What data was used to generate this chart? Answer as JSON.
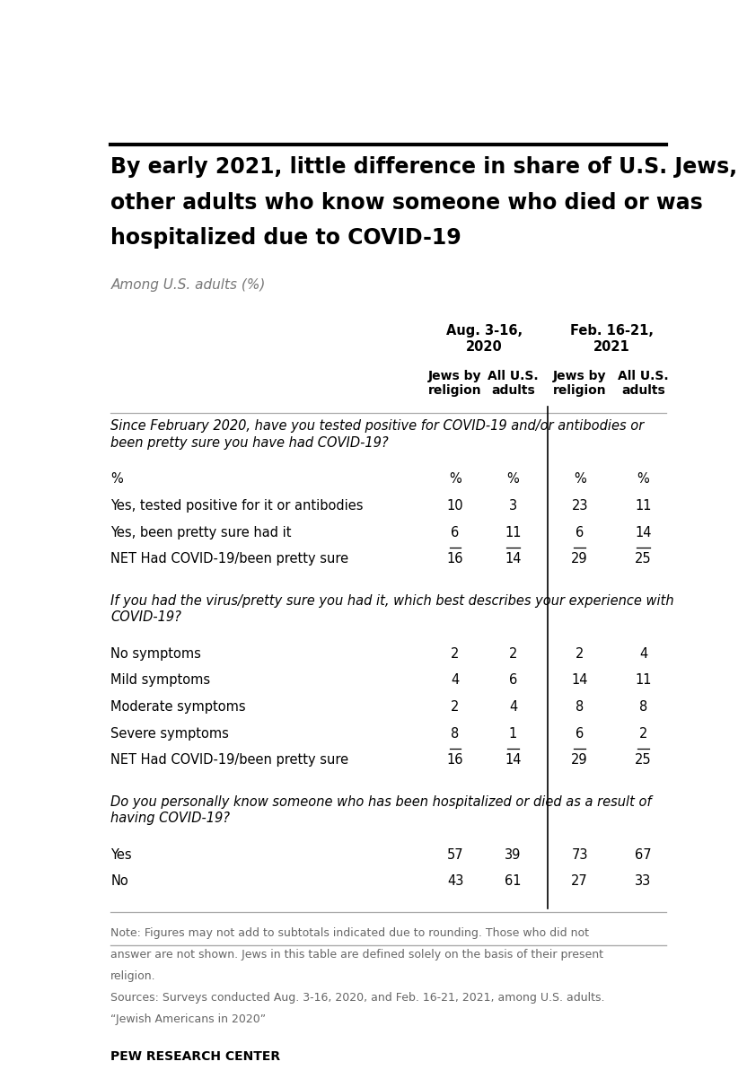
{
  "title_line1": "By early 2021, little difference in share of U.S. Jews,",
  "title_line2": "other adults who know someone who died or was",
  "title_line3": "hospitalized due to COVID-19",
  "subtitle": "Among U.S. adults (%)",
  "date_headers": [
    "Aug. 3-16,\n2020",
    "Feb. 16-21,\n2021"
  ],
  "sub_col_headers": [
    "Jews by\nreligion",
    "All U.S.\nadults",
    "Jews by\nreligion",
    "All U.S.\nadults"
  ],
  "sections": [
    {
      "question": "Since February 2020, have you tested positive for COVID-19 and/or antibodies or\nbeen pretty sure you have had COVID-19?",
      "rows": [
        {
          "label": "%",
          "values": [
            "%",
            "%",
            "%",
            "%"
          ],
          "underline": [
            false,
            false,
            false,
            false
          ]
        },
        {
          "label": "Yes, tested positive for it or antibodies",
          "values": [
            "10",
            "3",
            "23",
            "11"
          ],
          "underline": [
            false,
            false,
            false,
            false
          ]
        },
        {
          "label": "Yes, been pretty sure had it",
          "values": [
            "6",
            "11",
            "6",
            "14"
          ],
          "underline": [
            true,
            true,
            true,
            true
          ]
        },
        {
          "label": "NET Had COVID-19/been pretty sure",
          "values": [
            "16",
            "14",
            "29",
            "25"
          ],
          "underline": [
            false,
            false,
            false,
            false
          ]
        }
      ]
    },
    {
      "question": "If you had the virus/pretty sure you had it, which best describes your experience with\nCOVID-19?",
      "rows": [
        {
          "label": "No symptoms",
          "values": [
            "2",
            "2",
            "2",
            "4"
          ],
          "underline": [
            false,
            false,
            false,
            false
          ]
        },
        {
          "label": "Mild symptoms",
          "values": [
            "4",
            "6",
            "14",
            "11"
          ],
          "underline": [
            false,
            false,
            false,
            false
          ]
        },
        {
          "label": "Moderate symptoms",
          "values": [
            "2",
            "4",
            "8",
            "8"
          ],
          "underline": [
            false,
            false,
            false,
            false
          ]
        },
        {
          "label": "Severe symptoms",
          "values": [
            "8",
            "1",
            "6",
            "2"
          ],
          "underline": [
            true,
            true,
            true,
            true
          ]
        },
        {
          "label": "NET Had COVID-19/been pretty sure",
          "values": [
            "16",
            "14",
            "29",
            "25"
          ],
          "underline": [
            false,
            false,
            false,
            false
          ]
        }
      ]
    },
    {
      "question": "Do you personally know someone who has been hospitalized or died as a result of\nhaving COVID-19?",
      "rows": [
        {
          "label": "Yes",
          "values": [
            "57",
            "39",
            "73",
            "67"
          ],
          "underline": [
            false,
            false,
            false,
            false
          ]
        },
        {
          "label": "No",
          "values": [
            "43",
            "61",
            "27",
            "33"
          ],
          "underline": [
            false,
            false,
            false,
            false
          ]
        }
      ]
    }
  ],
  "note_line1": "Note: Figures may not add to subtotals indicated due to rounding. Those who did not",
  "note_line2": "answer are not shown. Jews in this table are defined solely on the basis of their present",
  "note_line3": "religion.",
  "note_line4": "Sources: Surveys conducted Aug. 3-16, 2020, and Feb. 16-21, 2021, among U.S. adults.",
  "note_line5": "“Jewish Americans in 2020”",
  "source_label": "PEW RESEARCH CENTER",
  "bg_color": "#ffffff",
  "text_color": "#000000",
  "note_color": "#666666",
  "divider_color": "#000000",
  "line_color": "#aaaaaa",
  "top_bar_color": "#000000"
}
